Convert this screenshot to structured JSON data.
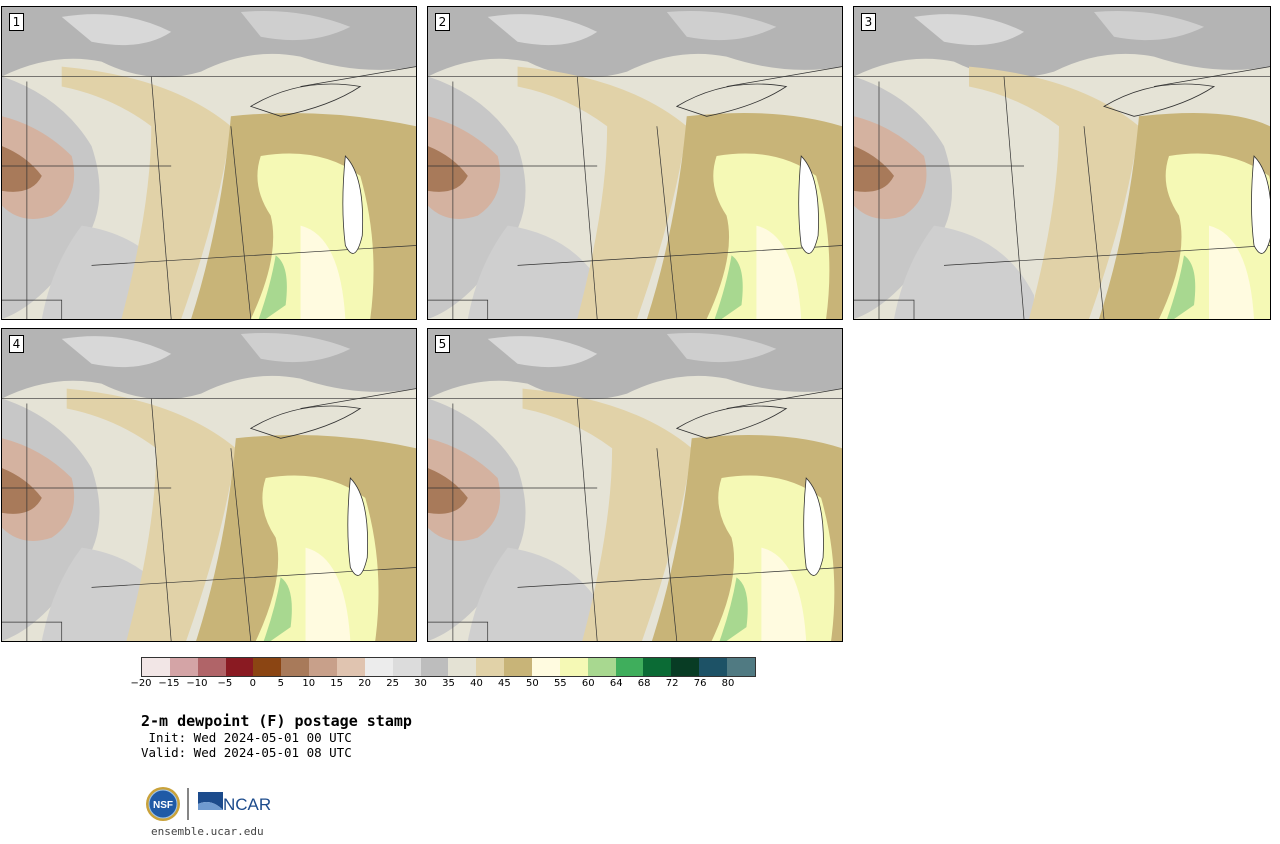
{
  "panels": [
    {
      "label": "1",
      "variant": 0
    },
    {
      "label": "2",
      "variant": 1
    },
    {
      "label": "3",
      "variant": 2
    },
    {
      "label": "4",
      "variant": 3
    },
    {
      "label": "5",
      "variant": 4
    }
  ],
  "colorbar": {
    "colors": [
      "#f2e6e6",
      "#d4a4a6",
      "#b06468",
      "#8a1a22",
      "#8b4513",
      "#a87a5a",
      "#c8a08a",
      "#e0c4b0",
      "#ececec",
      "#dcdcdc",
      "#bdbdbd",
      "#e4e2d4",
      "#e1d2a8",
      "#c8b478",
      "#fffbe0",
      "#f5f9b5",
      "#a8d890",
      "#3fae5c",
      "#0b6b35",
      "#083c24",
      "#1d5266",
      "#507a82"
    ],
    "ticks": [
      "−20",
      "−15",
      "−10",
      "−5",
      "0",
      "5",
      "10",
      "15",
      "20",
      "25",
      "30",
      "35",
      "40",
      "45",
      "50",
      "55",
      "60",
      "64",
      "68",
      "72",
      "76",
      "80"
    ]
  },
  "title": "2-m dewpoint (F) postage stamp",
  "init": " Init: Wed 2024-05-01 00 UTC",
  "valid": "Valid: Wed 2024-05-01 08 UTC",
  "logos": {
    "nsf": "NSF",
    "ncar": "NCAR"
  },
  "footer_url": "ensemble.ucar.edu"
}
